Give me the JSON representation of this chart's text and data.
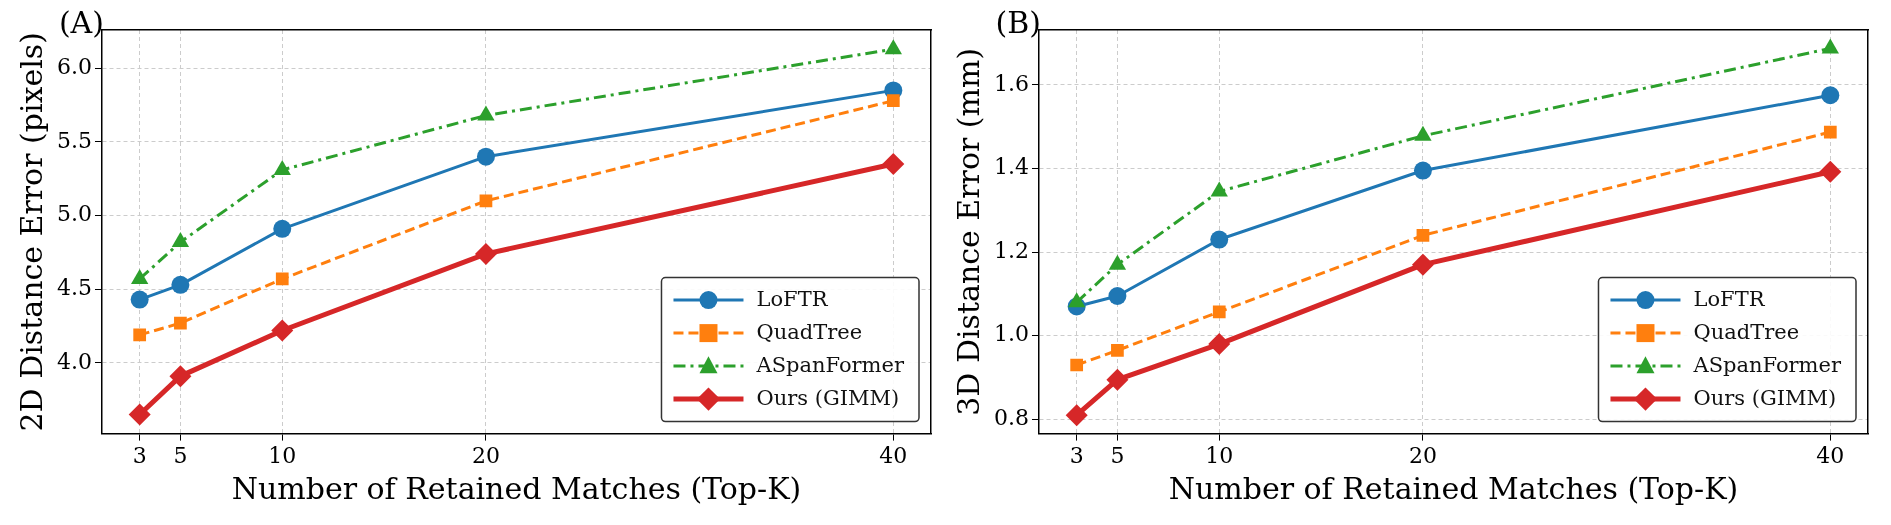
{
  "chart_data": [
    {
      "type": "line",
      "title": "(A)",
      "xlabel": "Number of Retained Matches (Top-K)",
      "ylabel": "2D Distance Error (pixels)",
      "x": [
        3,
        5,
        10,
        20,
        40
      ],
      "xlim": [
        1.15,
        41.85
      ],
      "xticks": [
        3,
        5,
        10,
        20,
        40
      ],
      "ylim": [
        3.52,
        6.26
      ],
      "yticks": [
        {
          "value": 4,
          "label": "4.0"
        },
        4.5,
        {
          "value": 5,
          "label": "5.0"
        },
        5.5,
        {
          "value": 6,
          "label": "6.0"
        }
      ],
      "grid": true,
      "legend": "bottom right",
      "series": [
        {
          "name": "LoFTR",
          "color": "#1f77b4",
          "marker": "circle",
          "line_style": "solid",
          "values": [
            4.43,
            4.53,
            4.91,
            5.4,
            5.85
          ]
        },
        {
          "name": "QuadTree",
          "color": "#ff7f0e",
          "marker": "square",
          "line_style": "dashed",
          "values": [
            4.19,
            4.27,
            4.57,
            5.1,
            5.78
          ]
        },
        {
          "name": "ASpanFormer",
          "color": "#2ca02c",
          "marker": "triangle",
          "line_style": "dashdot",
          "values": [
            4.57,
            4.82,
            5.31,
            5.68,
            6.13
          ]
        },
        {
          "name": "Ours (GIMM)",
          "color": "#d62728",
          "marker": "diamond",
          "line_style": "solid",
          "values": [
            3.65,
            3.91,
            4.22,
            4.74,
            5.35
          ]
        }
      ]
    },
    {
      "type": "line",
      "title": "(B)",
      "xlabel": "Number of Retained Matches (Top-K)",
      "ylabel": "3D Distance Error (mm)",
      "x": [
        3,
        5,
        10,
        20,
        40
      ],
      "xlim": [
        1.15,
        41.85
      ],
      "xticks": [
        3,
        5,
        10,
        20,
        40
      ],
      "ylim": [
        0.766,
        1.731
      ],
      "yticks": [
        0.8,
        {
          "value": 1,
          "label": "1.0"
        },
        1.2,
        1.4,
        1.6
      ],
      "grid": true,
      "legend": "bottom right",
      "series": [
        {
          "name": "LoFTR",
          "color": "#1f77b4",
          "marker": "circle",
          "line_style": "solid",
          "values": [
            1.07,
            1.095,
            1.23,
            1.395,
            1.575
          ]
        },
        {
          "name": "QuadTree",
          "color": "#ff7f0e",
          "marker": "square",
          "line_style": "dashed",
          "values": [
            0.93,
            0.965,
            1.057,
            1.24,
            1.487
          ]
        },
        {
          "name": "ASpanFormer",
          "color": "#2ca02c",
          "marker": "triangle",
          "line_style": "dashdot",
          "values": [
            1.08,
            1.17,
            1.345,
            1.478,
            1.687
          ]
        },
        {
          "name": "Ours (GIMM)",
          "color": "#d62728",
          "marker": "diamond",
          "line_style": "solid",
          "values": [
            0.81,
            0.895,
            0.98,
            1.17,
            1.392
          ]
        }
      ]
    }
  ]
}
